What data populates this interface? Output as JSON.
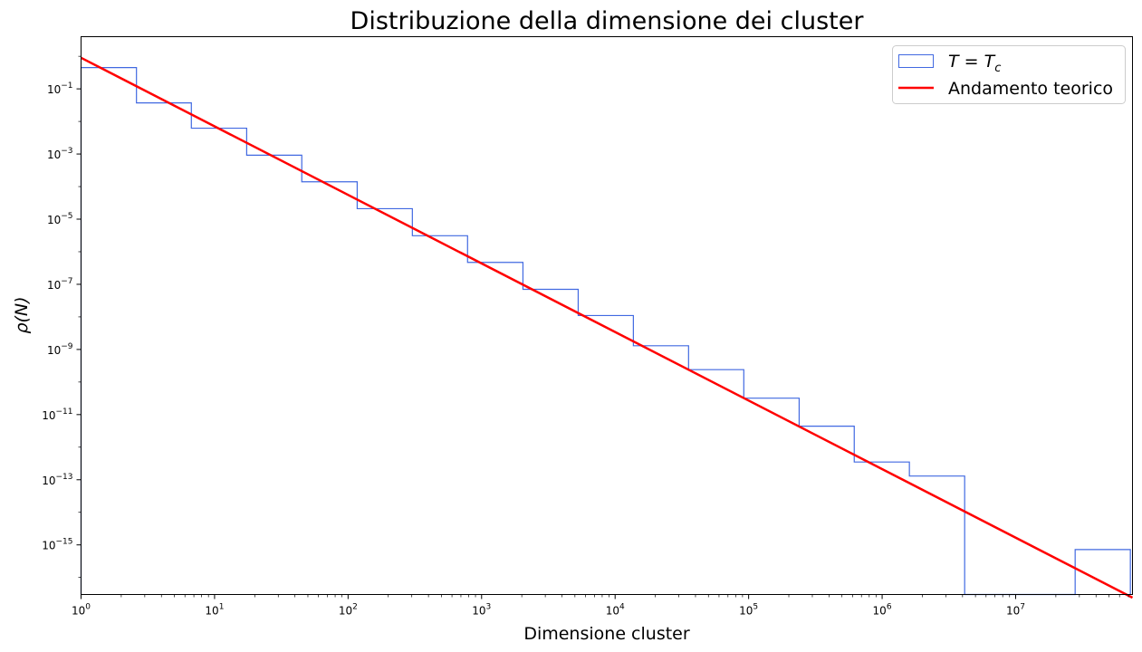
{
  "chart_data": {
    "type": "line",
    "title": "Distribuzione della dimensione dei cluster",
    "xlabel": "Dimensione cluster",
    "ylabel": "ρ(N)",
    "xscale": "log",
    "yscale": "log",
    "xlim": [
      1,
      75000000
    ],
    "ylim": [
      3e-17,
      4
    ],
    "x_ticks": [
      {
        "base": "10",
        "exp": "0",
        "value": 1
      },
      {
        "base": "10",
        "exp": "1",
        "value": 10
      },
      {
        "base": "10",
        "exp": "2",
        "value": 100
      },
      {
        "base": "10",
        "exp": "3",
        "value": 1000
      },
      {
        "base": "10",
        "exp": "4",
        "value": 10000
      },
      {
        "base": "10",
        "exp": "5",
        "value": 100000
      },
      {
        "base": "10",
        "exp": "6",
        "value": 1000000
      },
      {
        "base": "10",
        "exp": "7",
        "value": 10000000
      }
    ],
    "y_ticks": [
      {
        "base": "10",
        "exp": "−1",
        "value": 0.1
      },
      {
        "base": "10",
        "exp": "−3",
        "value": 0.001
      },
      {
        "base": "10",
        "exp": "−5",
        "value": 1e-05
      },
      {
        "base": "10",
        "exp": "−7",
        "value": 1e-07
      },
      {
        "base": "10",
        "exp": "−9",
        "value": 1e-09
      },
      {
        "base": "10",
        "exp": "−11",
        "value": 1e-11
      },
      {
        "base": "10",
        "exp": "−13",
        "value": 1e-13
      },
      {
        "base": "10",
        "exp": "−15",
        "value": 1e-15
      }
    ],
    "series": [
      {
        "name": "T = Tc",
        "name_parts": {
          "lhs": "T",
          "eq": " = ",
          "rhs": "T",
          "sub": "c"
        },
        "kind": "step-histogram",
        "color": "#4169e1",
        "bin_edges": [
          1,
          2.6,
          6.7,
          17.4,
          45,
          117,
          303,
          785,
          2040,
          5290,
          13700,
          35500,
          92000,
          239000,
          618000,
          1600000,
          4150000,
          10800000,
          27900000,
          72300000
        ],
        "values": [
          0.45,
          0.037,
          0.0062,
          0.00092,
          0.00014,
          2.1e-05,
          3.1e-06,
          4.7e-07,
          7e-08,
          1.1e-08,
          1.3e-09,
          2.4e-10,
          3.2e-11,
          4.4e-12,
          3.5e-13,
          1.3e-13,
          0,
          0,
          7.2e-16
        ]
      },
      {
        "name": "Andamento teorico",
        "kind": "line",
        "color": "#ff0000",
        "x": [
          1,
          75000000
        ],
        "y": [
          0.9,
          2.4e-17
        ]
      }
    ],
    "legend": {
      "position": "top-right"
    },
    "grid": false
  }
}
